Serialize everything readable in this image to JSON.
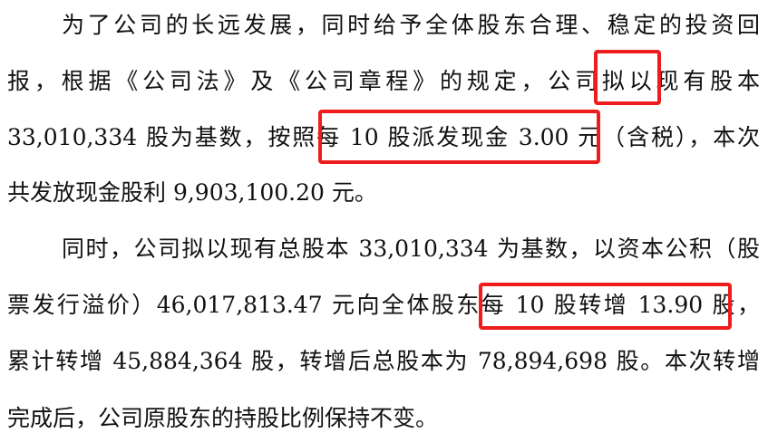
{
  "paragraphs": [
    {
      "lines": [
        "为了公司的长远发展，同时给予全体股东合理、稳定的投资回",
        "报，根据《公司法》及《公司章程》的规定，公司拟以现有股本",
        "33,010,334 股为基数，按照每 10 股派发现金 3.00 元（含税），本次",
        "共发放现金股利 9,903,100.20 元。"
      ]
    },
    {
      "lines": [
        "同时，公司拟以现有总股本 33,010,334 为基数，以资本公积（股",
        "票发行溢价）46,017,813.47 元向全体股东每 10 股转增 13.90 股，",
        "累计转增 45,884,364 股，转增后总股本为 78,894,698 股。本次转增",
        "完成后，公司原股东的持股比例保持不变。"
      ]
    }
  ],
  "highlights": [
    "拟以",
    "每 10 股派发现金 3.00 元",
    "每 10 股转增 13.90 股"
  ],
  "highlight_color": "#ee1c1c"
}
